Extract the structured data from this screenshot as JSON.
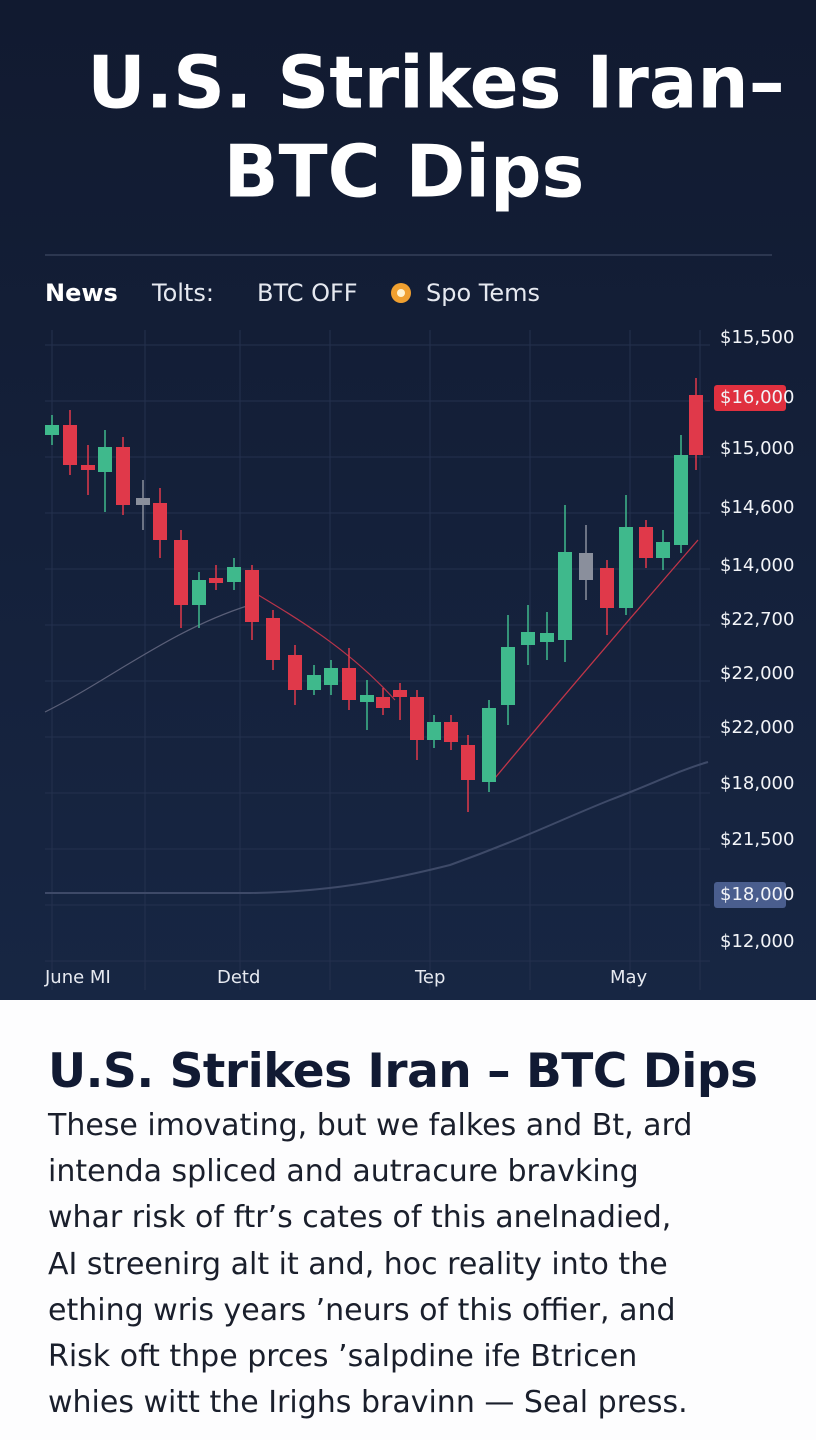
{
  "header": {
    "title_line1": "U.S. Strikes Iran–",
    "title_line2": "BTC Dips"
  },
  "tabs": [
    "News",
    "Tolts:",
    "BTC OFF",
    "Spo Tems"
  ],
  "chart": {
    "price_labels": [
      "$15,500",
      "$16,000",
      "$15,000",
      "$14,600",
      "$14,000",
      "$22,700",
      "$22,000",
      "$22,000",
      "$18,000",
      "$21,500",
      "$18,000",
      "$12,000"
    ],
    "time_labels": [
      "June MI",
      "Detd",
      "Tep",
      "May"
    ]
  },
  "article": {
    "headline": "U.S. Strikes Iran – BTC Dips",
    "paragraph_lines": [
      "These imovating, but we falkes and Bt, ard",
      "intenda spliced and autracure bravking",
      "whar risk of ftr’s cates of this anelnadied,",
      "AI streenirg alt it and, hoc reality into the",
      "ething wris years ’neurs of this offier, and",
      "Risk oft thpe prces ’salpdine ife Btricen",
      "whies witt the Irighs bravinn — Seal press."
    ]
  }
}
